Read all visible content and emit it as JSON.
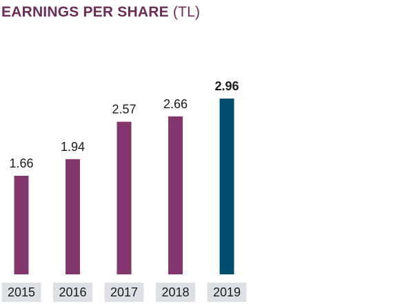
{
  "title": {
    "main": "EARNINGS PER SHARE",
    "unit": "(TL)"
  },
  "colors": {
    "title": "#6b2c57",
    "bar": "#84376c",
    "bar_highlight": "#004d6e",
    "tick_background": "#dde0e6"
  },
  "chart_data": {
    "type": "bar",
    "title": "EARNINGS PER SHARE (TL)",
    "categories": [
      "2015",
      "2016",
      "2017",
      "2018",
      "2019"
    ],
    "values": [
      1.66,
      1.94,
      2.57,
      2.66,
      2.96
    ],
    "value_labels": [
      "1.66",
      "1.94",
      "2.57",
      "2.66",
      "2.96"
    ],
    "highlight_index": 4,
    "xlabel": "",
    "ylabel": "",
    "ylim": [
      0,
      2.96
    ],
    "grid": false,
    "legend": "none"
  }
}
